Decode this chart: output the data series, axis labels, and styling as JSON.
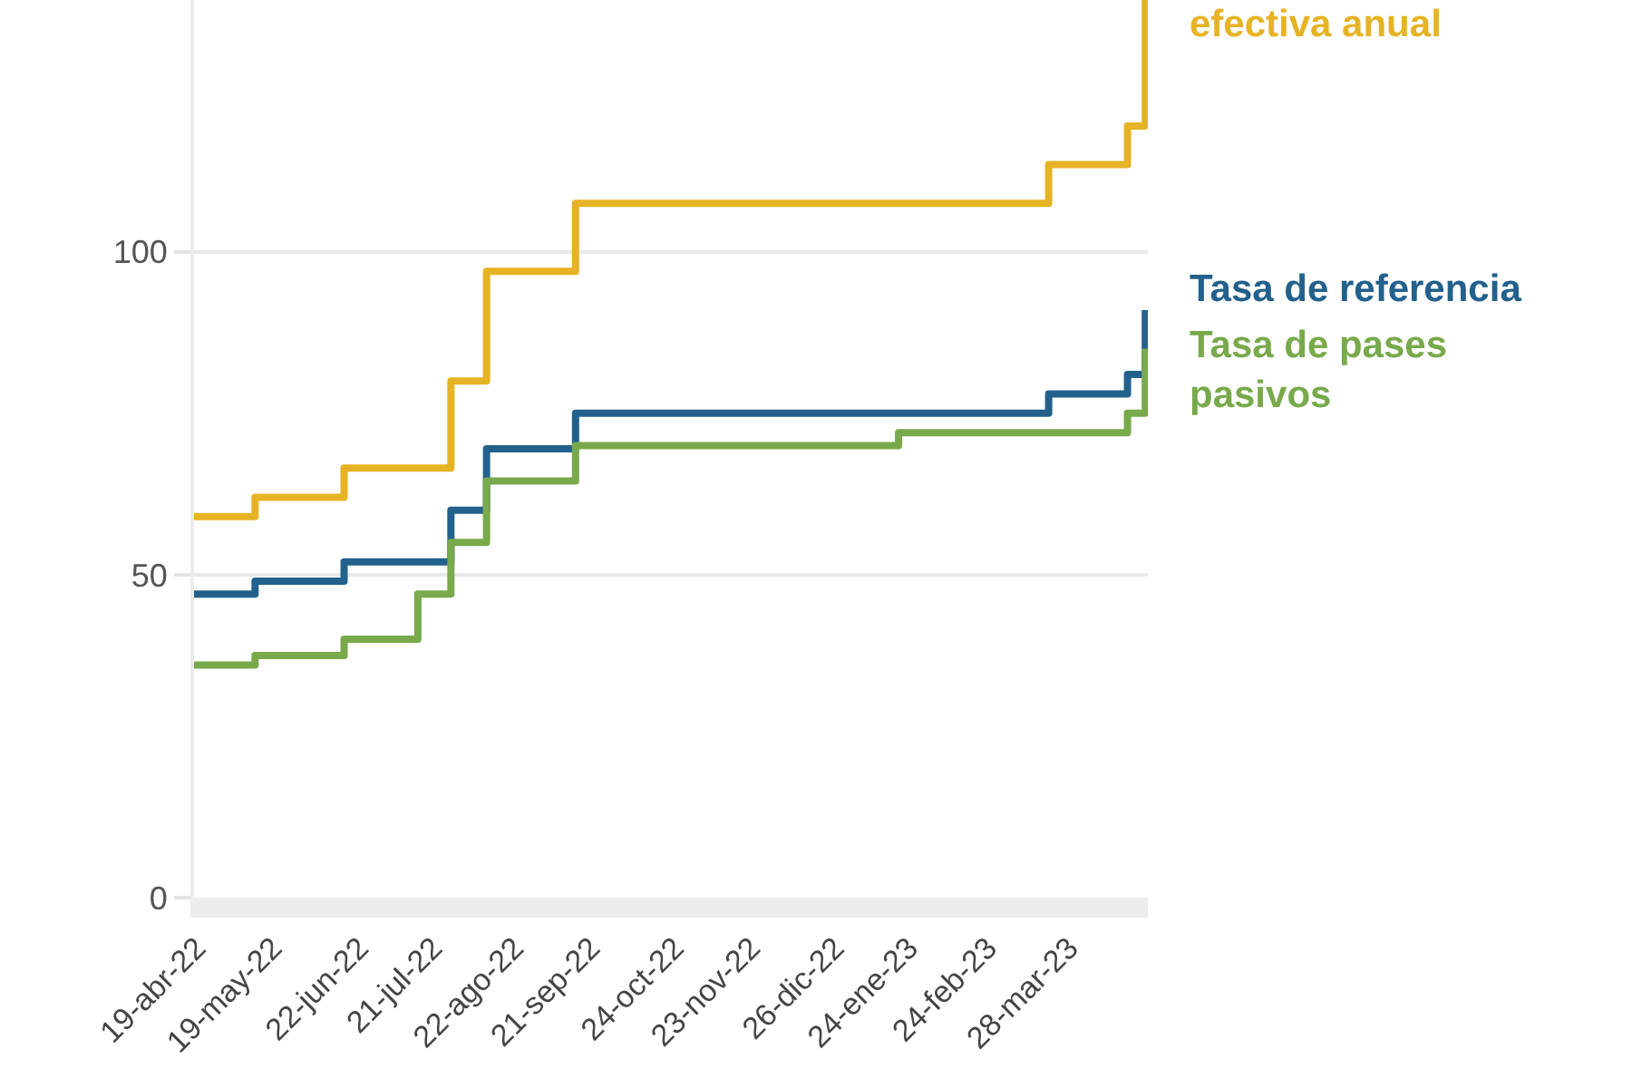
{
  "chart_data": {
    "type": "step",
    "series": [
      {
        "name": "efectiva anual",
        "color": "#e6b324",
        "x": [
          "2022-04-18",
          "2022-05-12",
          "2022-06-16",
          "2022-07-28",
          "2022-08-11",
          "2022-09-15",
          "2023-03-20",
          "2023-04-20",
          "2023-04-27"
        ],
        "values": [
          59,
          62,
          66.5,
          80,
          97,
          107.5,
          113.5,
          119.5,
          139
        ]
      },
      {
        "name": "Tasa de referencia",
        "color": "#22618c",
        "x": [
          "2022-04-18",
          "2022-05-12",
          "2022-06-16",
          "2022-07-28",
          "2022-08-11",
          "2022-09-15",
          "2023-03-20",
          "2023-04-20",
          "2023-04-27"
        ],
        "values": [
          47,
          49,
          52,
          60,
          69.5,
          75,
          78,
          81,
          91
        ]
      },
      {
        "name": "Tasa de pases pasivos",
        "color": "#78a94b",
        "x": [
          "2022-04-18",
          "2022-05-12",
          "2022-06-16",
          "2022-07-15",
          "2022-07-28",
          "2022-08-11",
          "2022-09-15",
          "2023-01-20",
          "2023-04-20",
          "2023-04-27"
        ],
        "values": [
          36,
          37.5,
          40,
          47,
          55,
          64.5,
          70,
          72,
          75,
          85
        ]
      }
    ],
    "xlim": [
      "2022-04-18",
      "2023-04-28"
    ],
    "xticks": [
      {
        "value": "2022-04-19",
        "label": "19-abr-22"
      },
      {
        "value": "2022-05-19",
        "label": "19-may-22"
      },
      {
        "value": "2022-06-22",
        "label": "22-jun-22"
      },
      {
        "value": "2022-07-21",
        "label": "21-jul-22"
      },
      {
        "value": "2022-08-22",
        "label": "22-ago-22"
      },
      {
        "value": "2022-09-21",
        "label": "21-sep-22"
      },
      {
        "value": "2022-10-24",
        "label": "24-oct-22"
      },
      {
        "value": "2022-11-23",
        "label": "23-nov-22"
      },
      {
        "value": "2022-12-26",
        "label": "26-dic-22"
      },
      {
        "value": "2023-01-24",
        "label": "24-ene-23"
      },
      {
        "value": "2023-02-24",
        "label": "24-feb-23"
      },
      {
        "value": "2023-03-28",
        "label": "28-mar-23"
      }
    ],
    "ylim": [
      0,
      139
    ],
    "yticks": [
      0,
      50,
      100
    ],
    "grid": "y",
    "line_style": "solid"
  }
}
